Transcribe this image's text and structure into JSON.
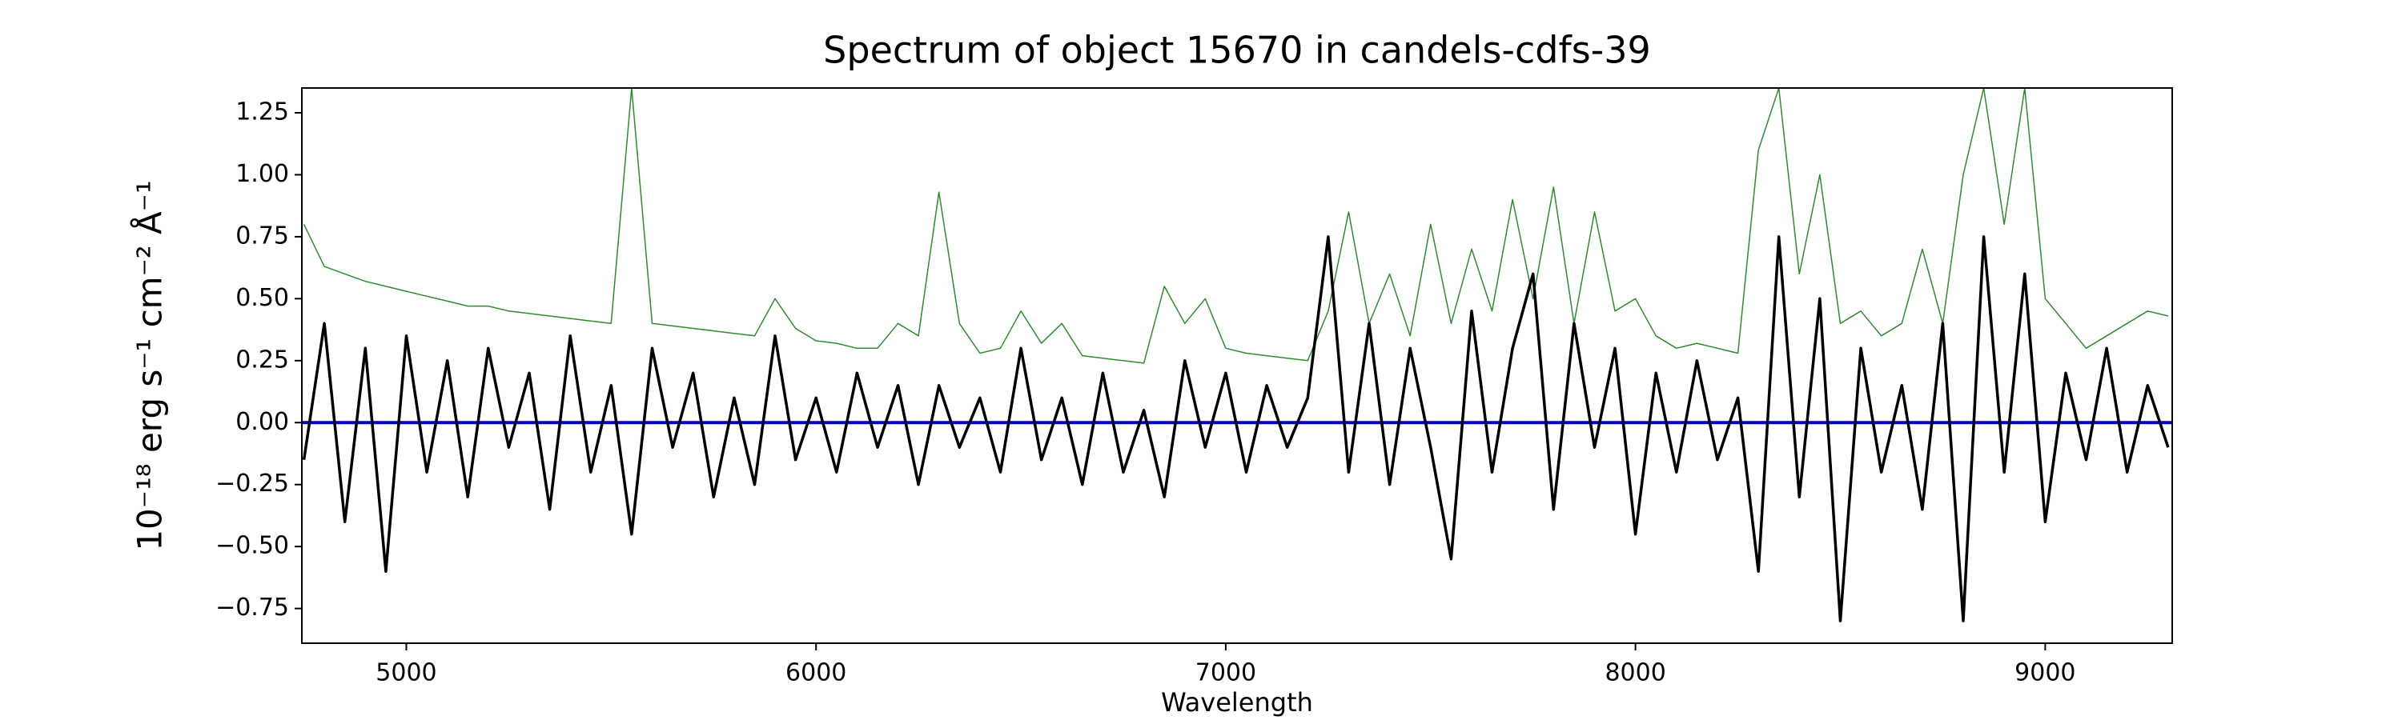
{
  "chart_data": {
    "type": "line",
    "title": "Spectrum of object 15670 in candels-cdfs-39",
    "x_label": "Wavelength",
    "y_label": "10⁻¹⁸ erg s⁻¹ cm⁻² Å⁻¹",
    "xlim": [
      4745,
      9310
    ],
    "ylim": [
      -0.89,
      1.35
    ],
    "xticks": [
      5000,
      6000,
      7000,
      8000,
      9000
    ],
    "yticks": [
      {
        "value": -0.75,
        "label": "−0.75"
      },
      {
        "value": -0.5,
        "label": "−0.50"
      },
      {
        "value": -0.25,
        "label": "−0.25"
      },
      {
        "value": 0,
        "label": "0.00"
      },
      0.25,
      {
        "value": 0.5,
        "label": "0.50"
      },
      0.75,
      {
        "value": 1,
        "label": "1.00"
      },
      1.25
    ],
    "grid": false,
    "series": [
      {
        "color": "#2e8b2e",
        "x": [
          4750,
          4800,
          4850,
          4900,
          4950,
          5000,
          5050,
          5100,
          5150,
          5200,
          5250,
          5300,
          5350,
          5400,
          5450,
          5500,
          5550,
          5600,
          5650,
          5700,
          5750,
          5800,
          5850,
          5900,
          5950,
          6000,
          6050,
          6100,
          6150,
          6200,
          6250,
          6300,
          6350,
          6400,
          6450,
          6500,
          6550,
          6600,
          6650,
          6700,
          6750,
          6800,
          6850,
          6900,
          6950,
          7000,
          7050,
          7100,
          7150,
          7200,
          7250,
          7300,
          7350,
          7400,
          7450,
          7500,
          7550,
          7600,
          7650,
          7700,
          7750,
          7800,
          7850,
          7900,
          7950,
          8000,
          8050,
          8100,
          8150,
          8200,
          8250,
          8300,
          8350,
          8400,
          8450,
          8500,
          8550,
          8600,
          8650,
          8700,
          8750,
          8800,
          8850,
          8900,
          8950,
          9000,
          9050,
          9100,
          9150,
          9200,
          9250,
          9300
        ],
        "values": [
          0.8,
          0.63,
          0.6,
          0.57,
          0.55,
          0.53,
          0.51,
          0.49,
          0.47,
          0.47,
          0.45,
          0.44,
          0.43,
          0.42,
          0.41,
          0.4,
          1.35,
          0.4,
          0.39,
          0.38,
          0.37,
          0.36,
          0.35,
          0.5,
          0.38,
          0.33,
          0.32,
          0.3,
          0.3,
          0.4,
          0.35,
          0.93,
          0.4,
          0.28,
          0.3,
          0.45,
          0.32,
          0.4,
          0.27,
          0.26,
          0.25,
          0.24,
          0.55,
          0.4,
          0.5,
          0.3,
          0.28,
          0.27,
          0.26,
          0.25,
          0.45,
          0.85,
          0.4,
          0.6,
          0.35,
          0.8,
          0.4,
          0.7,
          0.45,
          0.9,
          0.5,
          0.95,
          0.4,
          0.85,
          0.45,
          0.5,
          0.35,
          0.3,
          0.32,
          0.3,
          0.28,
          1.1,
          1.35,
          0.6,
          1.0,
          0.4,
          0.45,
          0.35,
          0.4,
          0.7,
          0.4,
          1.0,
          1.35,
          0.8,
          1.35,
          0.5,
          0.4,
          0.3,
          0.35,
          0.4,
          0.45,
          0.43
        ]
      },
      {
        "color": "#0000cc",
        "x": [
          4745,
          9310
        ],
        "values": [
          0,
          0
        ]
      },
      {
        "color": "#000000",
        "x": [
          4750,
          4800,
          4850,
          4900,
          4950,
          5000,
          5050,
          5100,
          5150,
          5200,
          5250,
          5300,
          5350,
          5400,
          5450,
          5500,
          5550,
          5600,
          5650,
          5700,
          5750,
          5800,
          5850,
          5900,
          5950,
          6000,
          6050,
          6100,
          6150,
          6200,
          6250,
          6300,
          6350,
          6400,
          6450,
          6500,
          6550,
          6600,
          6650,
          6700,
          6750,
          6800,
          6850,
          6900,
          6950,
          7000,
          7050,
          7100,
          7150,
          7200,
          7250,
          7300,
          7350,
          7400,
          7450,
          7500,
          7550,
          7600,
          7650,
          7700,
          7750,
          7800,
          7850,
          7900,
          7950,
          8000,
          8050,
          8100,
          8150,
          8200,
          8250,
          8300,
          8350,
          8400,
          8450,
          8500,
          8550,
          8600,
          8650,
          8700,
          8750,
          8800,
          8850,
          8900,
          8950,
          9000,
          9050,
          9100,
          9150,
          9200,
          9250,
          9300
        ],
        "values": [
          -0.15,
          0.4,
          -0.4,
          0.3,
          -0.6,
          0.35,
          -0.2,
          0.25,
          -0.3,
          0.3,
          -0.1,
          0.2,
          -0.35,
          0.35,
          -0.2,
          0.15,
          -0.45,
          0.3,
          -0.1,
          0.2,
          -0.3,
          0.1,
          -0.25,
          0.35,
          -0.15,
          0.1,
          -0.2,
          0.2,
          -0.1,
          0.15,
          -0.25,
          0.15,
          -0.1,
          0.1,
          -0.2,
          0.3,
          -0.15,
          0.1,
          -0.25,
          0.2,
          -0.2,
          0.05,
          -0.3,
          0.25,
          -0.1,
          0.2,
          -0.2,
          0.15,
          -0.1,
          0.1,
          0.75,
          -0.2,
          0.4,
          -0.25,
          0.3,
          -0.1,
          -0.55,
          0.45,
          -0.2,
          0.3,
          0.6,
          -0.35,
          0.4,
          -0.1,
          0.3,
          -0.45,
          0.2,
          -0.2,
          0.25,
          -0.15,
          0.1,
          -0.6,
          0.75,
          -0.3,
          0.5,
          -0.8,
          0.3,
          -0.2,
          0.15,
          -0.35,
          0.4,
          -0.8,
          0.75,
          -0.2,
          0.6,
          -0.4,
          0.2,
          -0.15,
          0.3,
          -0.2,
          0.15,
          -0.1
        ]
      }
    ]
  }
}
